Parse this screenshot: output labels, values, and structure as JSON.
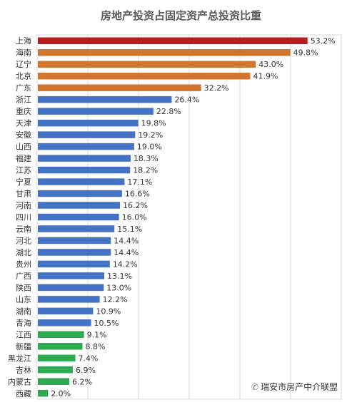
{
  "chart_data": {
    "type": "bar",
    "orientation": "horizontal",
    "title": "房地产投资占固定资产总投资比重",
    "categories": [
      "上海",
      "海南",
      "辽宁",
      "北京",
      "广东",
      "浙江",
      "重庆",
      "天津",
      "安徽",
      "山西",
      "福建",
      "江苏",
      "宁夏",
      "甘肃",
      "河南",
      "四川",
      "云南",
      "河北",
      "湖北",
      "贵州",
      "广西",
      "陕西",
      "山东",
      "湖南",
      "青海",
      "江西",
      "新疆",
      "黑龙江",
      "吉林",
      "内蒙古",
      "西藏"
    ],
    "values": [
      53.2,
      49.8,
      43.0,
      41.9,
      32.2,
      26.4,
      22.8,
      19.8,
      19.2,
      19.0,
      18.3,
      18.2,
      17.1,
      16.6,
      16.2,
      16.0,
      15.1,
      14.4,
      14.4,
      14.2,
      13.1,
      13.0,
      12.2,
      10.9,
      10.5,
      9.1,
      8.8,
      7.4,
      6.9,
      6.2,
      2.0
    ],
    "labels": [
      "53.2%",
      "49.8%",
      "43.0%",
      "41.9%",
      "32.2%",
      "26.4%",
      "22.8%",
      "19.8%",
      "19.2%",
      "19.0%",
      "18.3%",
      "18.2%",
      "17.1%",
      "16.6%",
      "16.2%",
      "16.0%",
      "15.1%",
      "14.4%",
      "14.4%",
      "14.2%",
      "13.1%",
      "13.0%",
      "12.2%",
      "10.9%",
      "10.5%",
      "9.1%",
      "8.8%",
      "7.4%",
      "6.9%",
      "6.2%",
      "2.0%"
    ],
    "xlim": [
      0,
      60
    ],
    "grid": true,
    "colors": {
      "top": "#b81c1c",
      "high": "#d2762f",
      "mid": "#4472c4",
      "low": "#2eaa4f"
    },
    "color_groups": [
      "top",
      "high",
      "high",
      "high",
      "high",
      "mid",
      "mid",
      "mid",
      "mid",
      "mid",
      "mid",
      "mid",
      "mid",
      "mid",
      "mid",
      "mid",
      "mid",
      "mid",
      "mid",
      "mid",
      "mid",
      "mid",
      "mid",
      "mid",
      "mid",
      "low",
      "low",
      "low",
      "low",
      "low",
      "low"
    ]
  },
  "watermark": {
    "text": "瑞安市房产中介联盟",
    "icon": "wechat-icon"
  }
}
